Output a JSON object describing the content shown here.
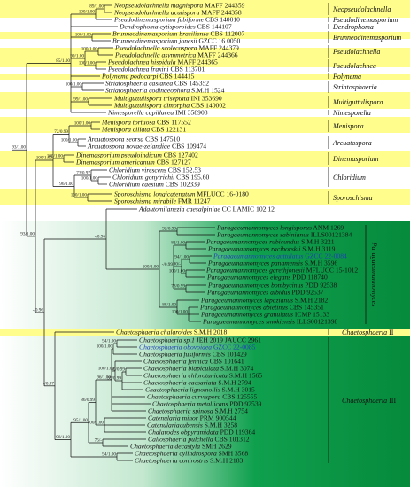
{
  "colors": {
    "yellow": "#fffd8c",
    "green_light": "#c3e8cf",
    "green": "#0fa04e",
    "green_dark": "#068a3c",
    "highlight_text": "#1f3fb8"
  },
  "taxa": [
    {
      "genus": "Neopseudolachnella magnispora",
      "code": "MAFF 244359"
    },
    {
      "genus": "Neopseudolachnella acutispora",
      "code": "MAFF 244358"
    },
    {
      "genus": "Pseudodinemasporium fabiforme",
      "code": "CBS 140010"
    },
    {
      "genus": "Dendrophoma cytisporoides",
      "code": "CBS 144107"
    },
    {
      "genus": "Brunneodinemasporium brasiliense",
      "code": "CBS 112007"
    },
    {
      "genus": "Brunneodinemasporium jonesii",
      "code": "GZCC 16 0050"
    },
    {
      "genus": "Pseudolachnella scolecospora",
      "code": "MAFF 244379"
    },
    {
      "genus": "Pseudolachnella asymmetrica",
      "code": "MAFF 244366"
    },
    {
      "genus": "Pseudolachnea hispidula",
      "code": "MAFF 244365"
    },
    {
      "genus": "Pseudolachnea fraxini",
      "code": "CBS 113701"
    },
    {
      "genus": "Polynema podocarpi",
      "code": "CBS 144415"
    },
    {
      "genus": "Striatosphaeria castanea",
      "code": "CBS 145352"
    },
    {
      "genus": "Striatosphaeria codinaeophora",
      "code": "S.M.H 1524"
    },
    {
      "genus": "Multiguttulispora triseptata",
      "code": "INI 353690"
    },
    {
      "genus": "Multiguttulispora dimorpha",
      "code": "CBS 140002"
    },
    {
      "genus": "Nimesporella capillacea",
      "code": "IMI 358908"
    },
    {
      "genus": "Menispora tortuosa",
      "code": "CBS 117552"
    },
    {
      "genus": "Menispora ciliata",
      "code": "CBS 122131"
    },
    {
      "genus": "Arcuatospora seorsa",
      "code": "CBS 147510"
    },
    {
      "genus": "Arcuatospora novae-zelandiae",
      "code": "CBS 109474"
    },
    {
      "genus": "Dinemasporium pseudoindicum",
      "code": "CBS 127402"
    },
    {
      "genus": "Dinemasporium americanum",
      "code": "CBS 127127"
    },
    {
      "genus": "Chloridium virescens",
      "code": "CBS 152.53"
    },
    {
      "genus": "Chloridium gonytrichii",
      "code": "CBS 195.60"
    },
    {
      "genus": "Chloridium caesium",
      "code": "CBS 102339"
    },
    {
      "genus": "Sporoschisma longicatenatum",
      "code": "MFLUCC 16-0180"
    },
    {
      "genus": "Sporoschisma mirabile",
      "code": "FMR 11247"
    },
    {
      "genus": "Adautomilanezia caesalpiniae",
      "code": "CC LAMIC 102.12"
    },
    {
      "genus": "Paragaeumannomyces longisporus",
      "code": "ANM 1269"
    },
    {
      "genus": "Paragaeumannomyces sabinianus",
      "code": "ILLS00121384"
    },
    {
      "genus": "Paragaeumannomyces rubicundus",
      "code": "S.M.H 3221"
    },
    {
      "genus": "Paragaeumannomyces raciborskii",
      "code": "S.M.H 3119"
    },
    {
      "genus": "Paragaeumannomyces guttulatus",
      "code": "GZCC 22-0084"
    },
    {
      "genus": "Paragaeumannomyces panamensis",
      "code": "S.M.H 3596"
    },
    {
      "genus": "Paragaeumannomyces garethjonesii",
      "code": "MFLUCC 15-1012"
    },
    {
      "genus": "Paragaeumannomyces elegans",
      "code": "PDD 118740"
    },
    {
      "genus": "Paragaeumannomyces bombycinus",
      "code": "PDD 92538"
    },
    {
      "genus": "Paragaeumannomyces albidus",
      "code": "PDD 92537"
    },
    {
      "genus": "Paragaeumannomyces lapazianus",
      "code": "S.M.H 2182"
    },
    {
      "genus": "Paragaeumannomyces abietinus",
      "code": "CBS 145351"
    },
    {
      "genus": "Paragaeumannomyces granulatus",
      "code": "ICMP 15133"
    },
    {
      "genus": "Paragaeumannomyces smokiensis",
      "code": "ILLS00121398"
    },
    {
      "genus": "Chaetosphaeria chalaroides",
      "code": "S.M.H 2018"
    },
    {
      "genus": "Chaetosphaeria sp.1",
      "code": "JEH 2019 JAUCC 2961"
    },
    {
      "genus": "Chaetosphaeria obovoidea",
      "code": "GZCC 22-0085"
    },
    {
      "genus": "Chaetosphaeria fusiformis",
      "code": "CBS 101429"
    },
    {
      "genus": "Chaetosphaeria fennica",
      "code": "CBS 101641"
    },
    {
      "genus": "Chaetosphaeria biapiculata",
      "code": "S.M.H 3074"
    },
    {
      "genus": "Chaetosphaeria chlorotunicata",
      "code": "S.M.H 1565"
    },
    {
      "genus": "Chaetosphaeria caesariata",
      "code": "S.M.H 2794"
    },
    {
      "genus": "Chaetosphaeria lignomollis",
      "code": "S.M.H 3015"
    },
    {
      "genus": "Chaetosphaeria curvispora",
      "code": "CBS 125555"
    },
    {
      "genus": "Chaetosphaeria metallicans",
      "code": "PDD 92539"
    },
    {
      "genus": "Chaetosphaeria spinosa",
      "code": "S.M.H 2754"
    },
    {
      "genus": "Catenularia minor",
      "code": "PRM 900544"
    },
    {
      "genus": "Catenulariacubensis",
      "code": "S.M.H 3258"
    },
    {
      "genus": "Chalarodes obpyramidata",
      "code": "PDD 119364"
    },
    {
      "genus": "Caliosphaeria pulchella",
      "code": "CBS 101312"
    },
    {
      "genus": "Chaetosphaeria decastyla",
      "code": "SMH 2629"
    },
    {
      "genus": "Chaetosphaeria cylindrospora",
      "code": "SMH 3568"
    },
    {
      "genus": "Chaetosphaeria conirostris",
      "code": "S.M.H 2183"
    }
  ],
  "clades": [
    {
      "label": "Neopseudolachnella",
      "suffix": ""
    },
    {
      "label": "Pseudodinemasporium",
      "suffix": ""
    },
    {
      "label": "Dendrophoma",
      "suffix": ""
    },
    {
      "label": "Brunneodinemasporium",
      "suffix": ""
    },
    {
      "label": "Pseudolachnella",
      "suffix": ""
    },
    {
      "label": "Pseudolachnea",
      "suffix": ""
    },
    {
      "label": "Polynema",
      "suffix": ""
    },
    {
      "label": "Striatosphaeria",
      "suffix": ""
    },
    {
      "label": "Multiguttulispora",
      "suffix": ""
    },
    {
      "label": "Nimesporella",
      "suffix": ""
    },
    {
      "label": "Menispora",
      "suffix": ""
    },
    {
      "label": "Arcuatospora",
      "suffix": ""
    },
    {
      "label": "Dinemasporium",
      "suffix": ""
    },
    {
      "label": "Chloridium",
      "suffix": ""
    },
    {
      "label": "Sporoschisma",
      "suffix": ""
    },
    {
      "label": "Paragaeumannomyces",
      "suffix": ""
    },
    {
      "label": "Chaetosphaeria",
      "suffix": " II"
    },
    {
      "label": "Chaetosphaeria",
      "suffix": " III"
    }
  ],
  "supports": [
    "89/1.00",
    "100/1.00",
    "99/1.00",
    "100/1.00",
    "85/1.00",
    "100/1.00",
    "100/1.00",
    "99/1.00",
    "100/1.00",
    "100/1.00",
    "93/1.00",
    "100/1.00",
    "72/0.99",
    "100/1.00",
    "100/1.00",
    "100/1.00",
    "73/0.97",
    "100/1.00",
    "96/1.00",
    "-/0.96",
    "100/1.00",
    "92/0.99",
    "82/1.00",
    "94/1.00",
    "-/0.99",
    "90/-",
    "100/1.00",
    "78/0.99",
    "72/0.98",
    "88/1.00",
    "100/1.00",
    "100/1.00",
    "-/0.97",
    "94/1.00",
    "100/1.00",
    "96/1.00",
    "100/1.00",
    "90/0.99",
    "99/0.99",
    "73/0.96",
    "100/1.00",
    "100/1.00",
    "86/0.99",
    "-/1.00",
    "95/1.00",
    "100/1.00",
    "75/-",
    "94/1.00",
    "98/1.00"
  ]
}
